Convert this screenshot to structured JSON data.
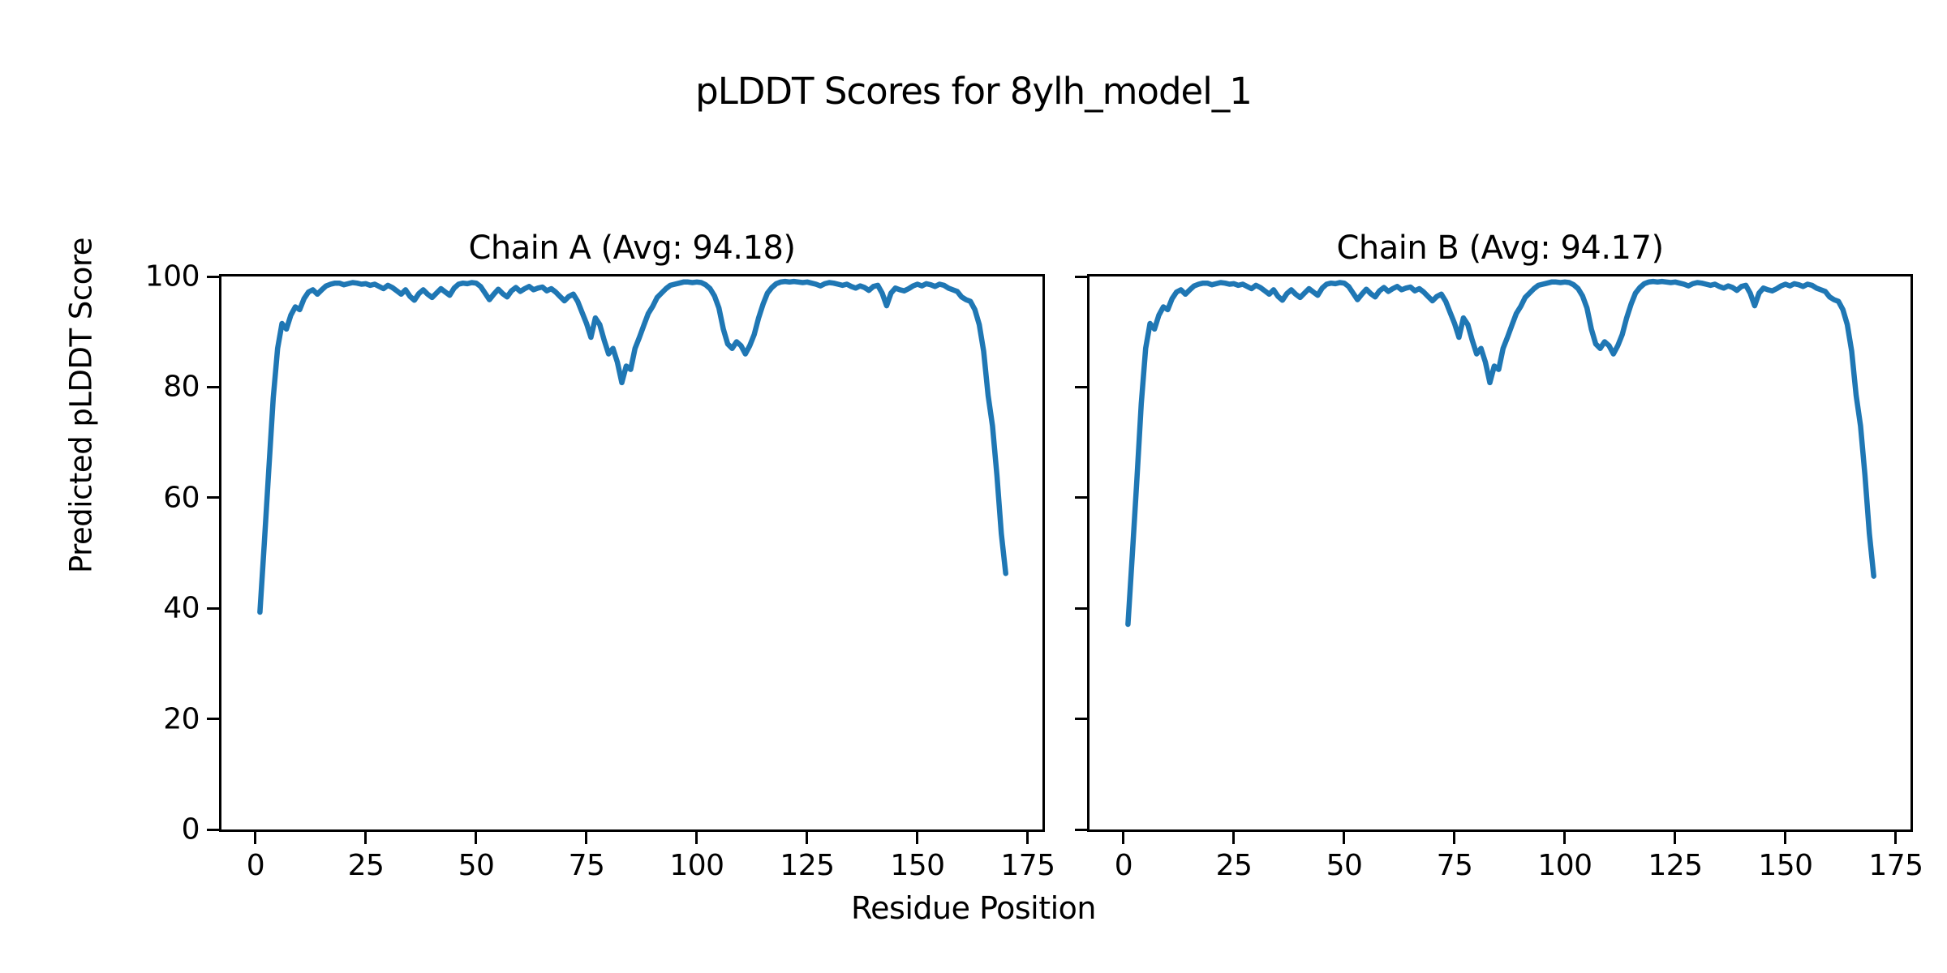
{
  "figure": {
    "title": "pLDDT Scores for 8ylh_model_1",
    "xlabel": "Residue Position",
    "ylabel": "Predicted pLDDT Score",
    "background_color": "#ffffff",
    "text_color": "#000000",
    "line_color": "#1f77b4"
  },
  "chart_data": [
    {
      "type": "line",
      "title": "Chain A (Avg: 94.18)",
      "xlabel": "Residue Position",
      "ylabel": "Predicted pLDDT Score",
      "xlim": [
        -7.72,
        178.32
      ],
      "ylim": [
        0,
        100
      ],
      "xticks": [
        0,
        25,
        50,
        75,
        100,
        125,
        150,
        175
      ],
      "yticks": [
        0,
        20,
        40,
        60,
        80,
        100
      ],
      "show_ytick_labels": true,
      "grid": false,
      "legend_position": "none",
      "line_color": "#1f77b4",
      "series": [
        {
          "name": "Chain A pLDDT",
          "x_start": 1,
          "x_step": 1,
          "values": [
            39.3,
            52,
            65,
            78,
            87,
            91.5,
            90.5,
            93,
            94.5,
            94,
            96,
            97.2,
            97.6,
            96.8,
            97.6,
            98.3,
            98.6,
            98.8,
            98.8,
            98.5,
            98.7,
            98.9,
            98.8,
            98.6,
            98.7,
            98.4,
            98.6,
            98.2,
            97.8,
            98.4,
            98,
            97.4,
            96.8,
            97.6,
            96.4,
            95.7,
            96.9,
            97.6,
            96.8,
            96.2,
            97,
            97.8,
            97.2,
            96.6,
            97.9,
            98.6,
            98.8,
            98.7,
            98.9,
            98.8,
            98.2,
            97,
            95.8,
            96.8,
            97.7,
            96.9,
            96.3,
            97.4,
            98,
            97.3,
            97.8,
            98.2,
            97.6,
            97.9,
            98.1,
            97.4,
            97.8,
            97.2,
            96.4,
            95.6,
            96.4,
            96.8,
            95.5,
            93.5,
            91.5,
            89,
            92.5,
            91.3,
            88.5,
            86,
            87,
            84.5,
            80.8,
            83.8,
            83.2,
            87,
            89,
            91.2,
            93.3,
            94.6,
            96.2,
            97,
            97.8,
            98.4,
            98.6,
            98.8,
            99,
            99,
            98.9,
            99,
            98.9,
            98.5,
            97.8,
            96.5,
            94.3,
            90.5,
            87.8,
            87,
            88.2,
            87.5,
            86,
            87.5,
            89.5,
            92.5,
            95,
            97,
            98,
            98.7,
            99,
            99.1,
            99,
            99.1,
            99,
            98.9,
            99,
            98.8,
            98.6,
            98.3,
            98.7,
            98.9,
            98.8,
            98.6,
            98.4,
            98.6,
            98.2,
            97.9,
            98.3,
            98,
            97.5,
            98.2,
            98.4,
            97,
            94.7,
            97,
            97.9,
            97.6,
            97.4,
            97.8,
            98.3,
            98.6,
            98.3,
            98.7,
            98.5,
            98.2,
            98.6,
            98.4,
            97.9,
            97.6,
            97.3,
            96.3,
            95.8,
            95.5,
            94,
            91.3,
            86.5,
            78.5,
            73,
            64,
            53.5,
            46.3
          ]
        }
      ]
    },
    {
      "type": "line",
      "title": "Chain B (Avg: 94.17)",
      "xlabel": "Residue Position",
      "ylabel": "Predicted pLDDT Score",
      "xlim": [
        -7.72,
        178.32
      ],
      "ylim": [
        0,
        100
      ],
      "xticks": [
        0,
        25,
        50,
        75,
        100,
        125,
        150,
        175
      ],
      "yticks": [
        0,
        20,
        40,
        60,
        80,
        100
      ],
      "show_ytick_labels": false,
      "grid": false,
      "legend_position": "none",
      "line_color": "#1f77b4",
      "series": [
        {
          "name": "Chain B pLDDT",
          "x_start": 1,
          "x_step": 1,
          "values": [
            37.1,
            50,
            63,
            77,
            87,
            91.5,
            90.5,
            93,
            94.5,
            94,
            96,
            97.2,
            97.6,
            96.8,
            97.6,
            98.3,
            98.6,
            98.8,
            98.8,
            98.5,
            98.7,
            98.9,
            98.8,
            98.6,
            98.7,
            98.4,
            98.6,
            98.2,
            97.8,
            98.4,
            98,
            97.4,
            96.8,
            97.6,
            96.4,
            95.7,
            96.9,
            97.6,
            96.8,
            96.2,
            97,
            97.8,
            97.2,
            96.6,
            97.9,
            98.6,
            98.8,
            98.7,
            98.9,
            98.8,
            98.2,
            97,
            95.8,
            96.8,
            97.7,
            96.9,
            96.3,
            97.4,
            98,
            97.3,
            97.8,
            98.2,
            97.6,
            97.9,
            98.1,
            97.4,
            97.8,
            97.2,
            96.4,
            95.6,
            96.4,
            96.8,
            95.5,
            93.5,
            91.5,
            89,
            92.5,
            91.3,
            88.5,
            86,
            87,
            84.5,
            80.8,
            83.8,
            83.2,
            87,
            89,
            91.2,
            93.3,
            94.6,
            96.2,
            97,
            97.8,
            98.4,
            98.6,
            98.8,
            99,
            99,
            98.9,
            99,
            98.9,
            98.5,
            97.8,
            96.5,
            94.3,
            90.5,
            87.8,
            87,
            88.2,
            87.5,
            86,
            87.5,
            89.5,
            92.5,
            95,
            97,
            98,
            98.7,
            99,
            99.1,
            99,
            99.1,
            99,
            98.9,
            99,
            98.8,
            98.6,
            98.3,
            98.7,
            98.9,
            98.8,
            98.6,
            98.4,
            98.6,
            98.2,
            97.9,
            98.3,
            98,
            97.5,
            98.2,
            98.4,
            97,
            94.7,
            97,
            97.9,
            97.6,
            97.4,
            97.8,
            98.3,
            98.6,
            98.3,
            98.7,
            98.5,
            98.2,
            98.6,
            98.4,
            97.9,
            97.6,
            97.3,
            96.3,
            95.8,
            95.5,
            94,
            91.3,
            86.5,
            78.5,
            73,
            64,
            53.5,
            45.8
          ]
        }
      ]
    }
  ]
}
